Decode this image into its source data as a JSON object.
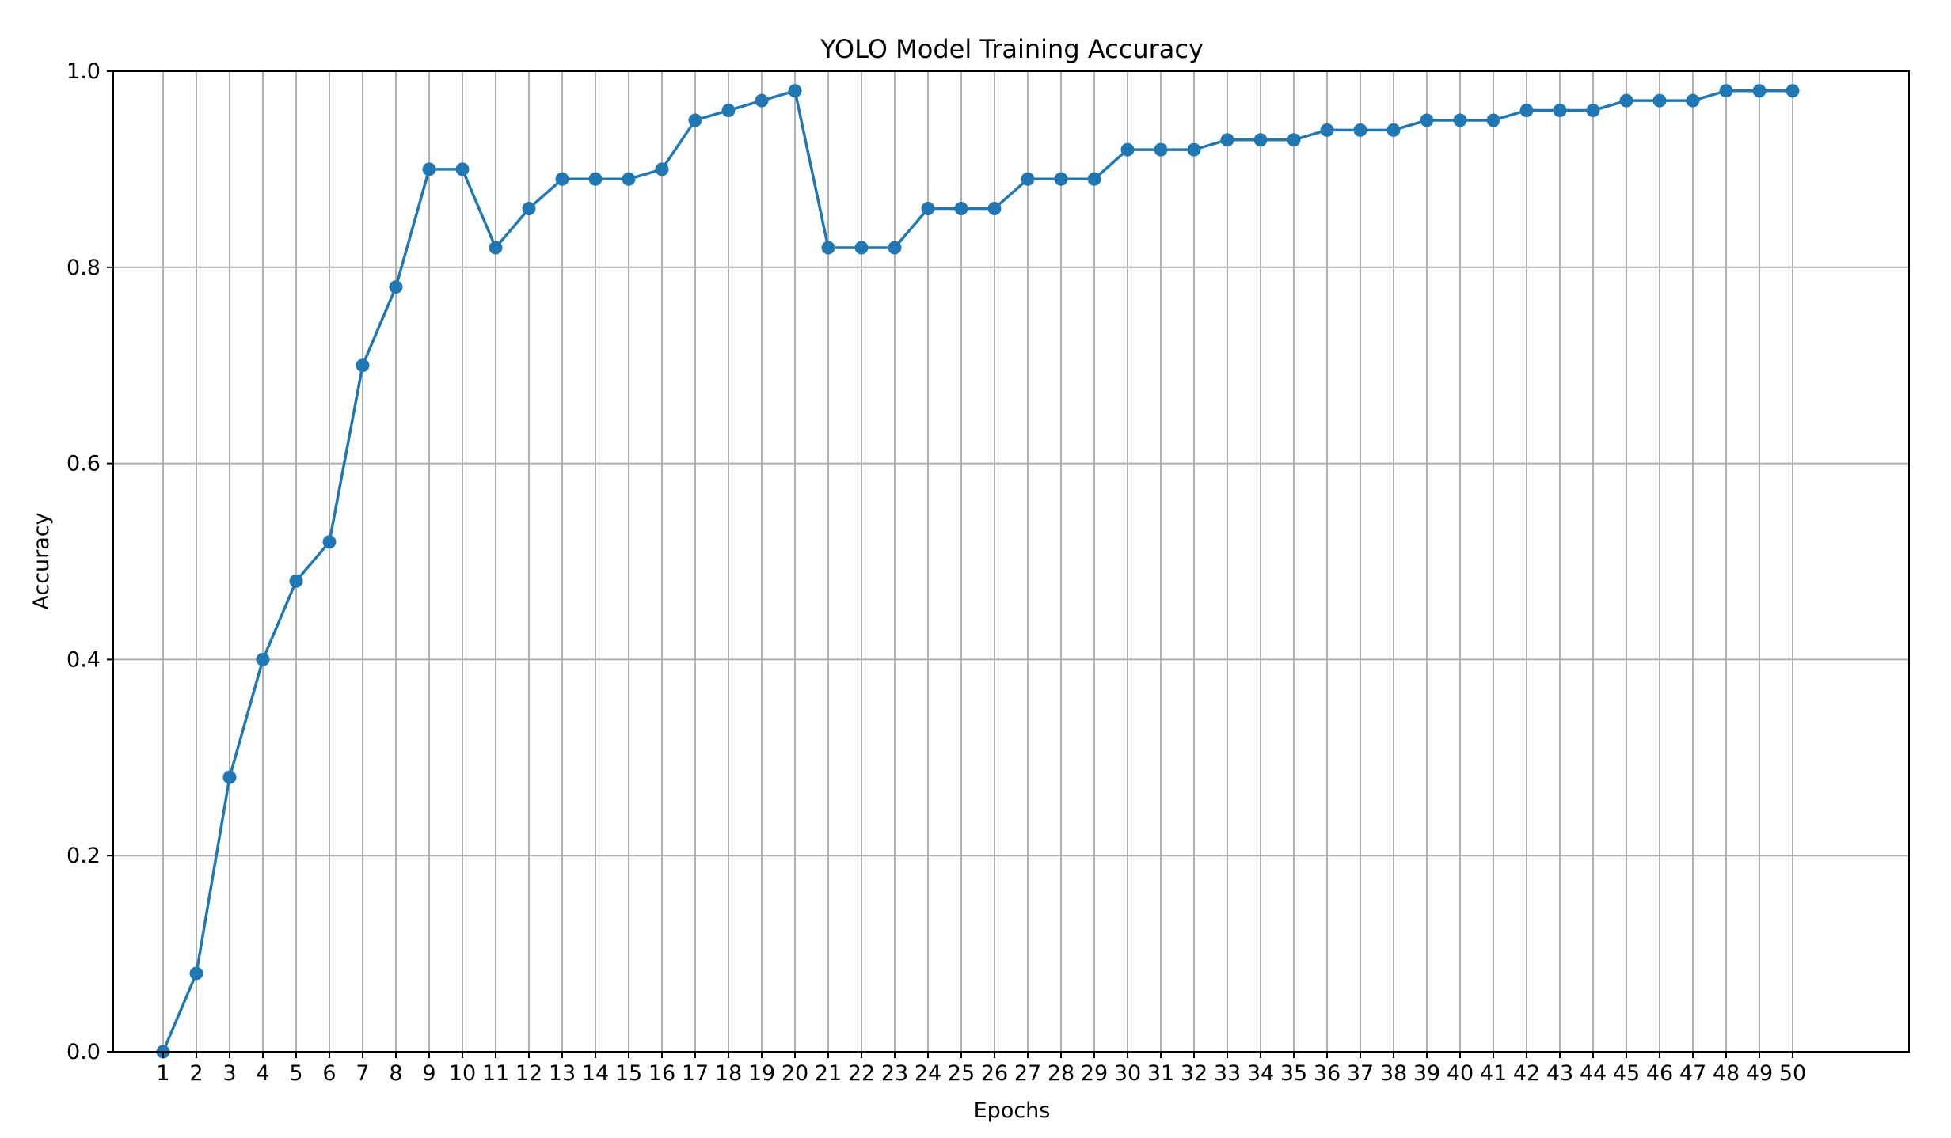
{
  "chart_data": {
    "type": "line",
    "title": "YOLO Model Training Accuracy",
    "xlabel": "Epochs",
    "ylabel": "Accuracy",
    "x": [
      1,
      2,
      3,
      4,
      5,
      6,
      7,
      8,
      9,
      10,
      11,
      12,
      13,
      14,
      15,
      16,
      17,
      18,
      19,
      20,
      21,
      22,
      23,
      24,
      25,
      26,
      27,
      28,
      29,
      30,
      31,
      32,
      33,
      34,
      35,
      36,
      37,
      38,
      39,
      40,
      41,
      42,
      43,
      44,
      45,
      46,
      47,
      48,
      49,
      50
    ],
    "xticks": [
      "1",
      "2",
      "3",
      "4",
      "5",
      "6",
      "7",
      "8",
      "9",
      "10",
      "11",
      "12",
      "13",
      "14",
      "15",
      "16",
      "17",
      "18",
      "19",
      "20",
      "21",
      "22",
      "23",
      "24",
      "25",
      "26",
      "27",
      "28",
      "29",
      "30",
      "31",
      "32",
      "33",
      "34",
      "35",
      "36",
      "37",
      "38",
      "39",
      "40",
      "41",
      "42",
      "43",
      "44",
      "45",
      "46",
      "47",
      "48",
      "49",
      "50"
    ],
    "yticks": [
      "0.0",
      "0.2",
      "0.4",
      "0.6",
      "0.8",
      "1.0"
    ],
    "ylim": [
      0,
      1.0
    ],
    "xlim": [
      -0.5,
      53.5
    ],
    "grid": true,
    "marker": "circle",
    "series": [
      {
        "color": "#1f77b4",
        "values": [
          0.0,
          0.08,
          0.28,
          0.4,
          0.48,
          0.52,
          0.7,
          0.78,
          0.9,
          0.9,
          0.82,
          0.86,
          0.89,
          0.89,
          0.89,
          0.9,
          0.95,
          0.96,
          0.97,
          0.98,
          0.82,
          0.82,
          0.82,
          0.86,
          0.86,
          0.86,
          0.89,
          0.89,
          0.89,
          0.92,
          0.92,
          0.92,
          0.93,
          0.93,
          0.93,
          0.94,
          0.94,
          0.94,
          0.95,
          0.95,
          0.95,
          0.96,
          0.96,
          0.96,
          0.97,
          0.97,
          0.97,
          0.98,
          0.98,
          0.98
        ]
      }
    ]
  }
}
